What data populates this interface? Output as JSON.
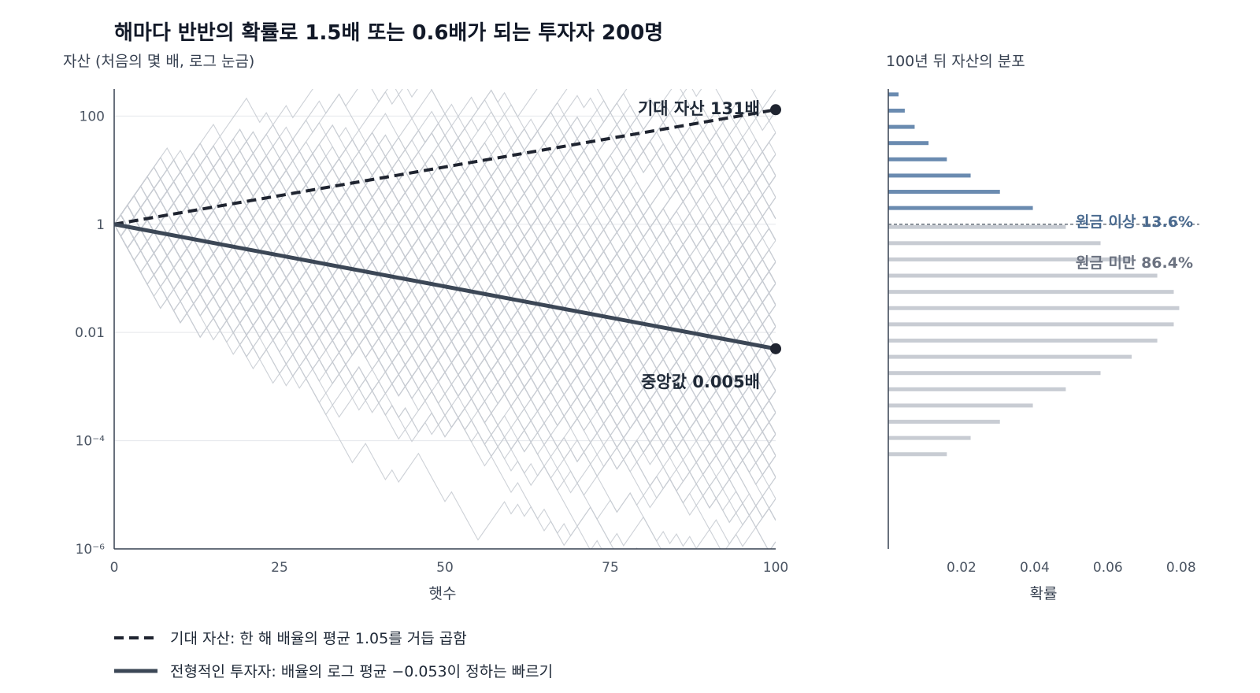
{
  "title": "해마다 반반의 확률로 1.5배 또는 0.6배가 되는 투자자 200명",
  "colors": {
    "path": "#c8ccd3",
    "expected": "#1f2430",
    "median": "#3c4756",
    "hist_above": "#6a8bb0",
    "hist_below": "#c8ccd3",
    "grid": "#e5e7eb",
    "axis": "#374151",
    "annot_blue": "#4a6a8f",
    "annot_gray": "#6b7280"
  },
  "chart_data": [
    {
      "type": "line",
      "ylabel": "자산 (처음의 몇 배, 로그 눈금)",
      "xlabel": "햇수",
      "x_ticks": [
        "0",
        "25",
        "50",
        "75",
        "100"
      ],
      "x_tick_values": [
        0,
        25,
        50,
        75,
        100
      ],
      "y_ticks": [
        "10⁻⁶",
        "10⁻⁴",
        "0.01",
        "1",
        "100"
      ],
      "y_tick_values": [
        -6,
        -4,
        -2,
        0,
        2
      ],
      "y_scale": "log",
      "xlim": [
        0,
        100
      ],
      "ylim_log10": [
        -6,
        2.5
      ],
      "n_paths": 200,
      "up_factor": 1.5,
      "down_factor": 0.6,
      "series": [
        {
          "name": "기대 자산: 한 해 배율의 평균 1.05를 거듭 곱함",
          "style": "dashed",
          "x": [
            0,
            100
          ],
          "y": [
            1,
            131
          ]
        },
        {
          "name": "전형적인 투자자: 배율의 로그 평균 −0.053이 정하는 빠르기",
          "style": "solid",
          "x": [
            0,
            100
          ],
          "y": [
            1,
            0.005
          ]
        }
      ],
      "annotations": {
        "expected": "기대 자산 131배",
        "median": "중앙값 0.005배"
      }
    },
    {
      "type": "bar",
      "orientation": "horizontal",
      "title": "100년 뒤 자산의 분포",
      "xlabel": "확률",
      "x_ticks": [
        "0.02",
        "0.04",
        "0.06",
        "0.08"
      ],
      "x_tick_values": [
        0.02,
        0.04,
        0.06,
        0.08
      ],
      "xlim": [
        0,
        0.085
      ],
      "threshold_label_above": "원금 이상 13.6%",
      "threshold_label_below": "원금 미만 86.4%",
      "bins_log10": [
        2.4,
        2.1,
        1.8,
        1.5,
        1.2,
        0.9,
        0.6,
        0.3,
        -0.05,
        -0.35,
        -0.65,
        -0.95,
        -1.25,
        -1.55,
        -1.85,
        -2.15,
        -2.45,
        -2.75,
        -3.05,
        -3.35,
        -3.65,
        -3.95,
        -4.25,
        -4.55,
        -4.85,
        -5.15,
        -5.45
      ],
      "values": [
        0.0028,
        0.0045,
        0.0072,
        0.011,
        0.016,
        0.0225,
        0.0305,
        0.0395,
        0.0485,
        0.058,
        0.0665,
        0.0735,
        0.078,
        0.0795,
        0.078,
        0.0735,
        0.0665,
        0.058,
        0.0485,
        0.0395,
        0.0305,
        0.0225,
        0.016,
        0.0,
        0.0,
        0.0,
        0.0
      ],
      "above_threshold_count": 8
    }
  ]
}
